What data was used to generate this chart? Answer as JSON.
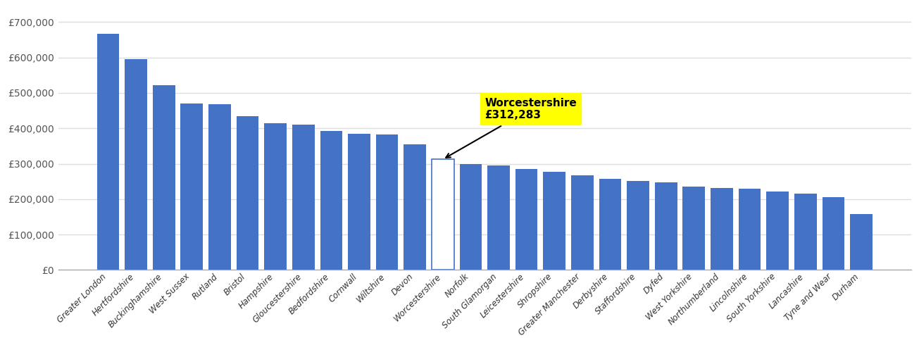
{
  "categories": [
    "Greater London",
    "Hertfordshire",
    "Buckinghamshire",
    "West Sussex",
    "Rutland",
    "Bristol",
    "Hampshire",
    "Gloucestershire",
    "Bedfordshire",
    "Cornwall",
    "Wiltshire",
    "Devon",
    "Worcestershire",
    "Norfolk",
    "South Glamorgan",
    "Leicestershire",
    "Shropshire",
    "Greater Manchester",
    "Derbyshire",
    "Staffordshire",
    "Dyfed",
    "West Yorkshire",
    "Northumberland",
    "Lincolnshire",
    "South Yorkshire",
    "Lancashire",
    "Tyne and Wear",
    "Durham"
  ],
  "values": [
    667000,
    595000,
    522000,
    470000,
    468000,
    435000,
    415000,
    410000,
    393000,
    385000,
    382000,
    355000,
    312283,
    300000,
    296000,
    286000,
    277000,
    268000,
    257000,
    252000,
    248000,
    236000,
    232000,
    230000,
    222000,
    215000,
    205000,
    157000
  ],
  "highlight_index": 12,
  "highlight_label": "Worcestershire\n£312,283",
  "bar_color": "#4472c4",
  "highlight_bar_color": "#ffffff",
  "highlight_box_color": "#ffff00",
  "ylabel_values": [
    "£0",
    "£100,000",
    "£200,000",
    "£300,000",
    "£400,000",
    "£500,000",
    "£600,000",
    "£700,000"
  ],
  "ytick_values": [
    0,
    100000,
    200000,
    300000,
    400000,
    500000,
    600000,
    700000
  ],
  "background_color": "#ffffff",
  "grid_color": "#dddddd",
  "figsize": [
    13.05,
    4.9
  ],
  "dpi": 100
}
